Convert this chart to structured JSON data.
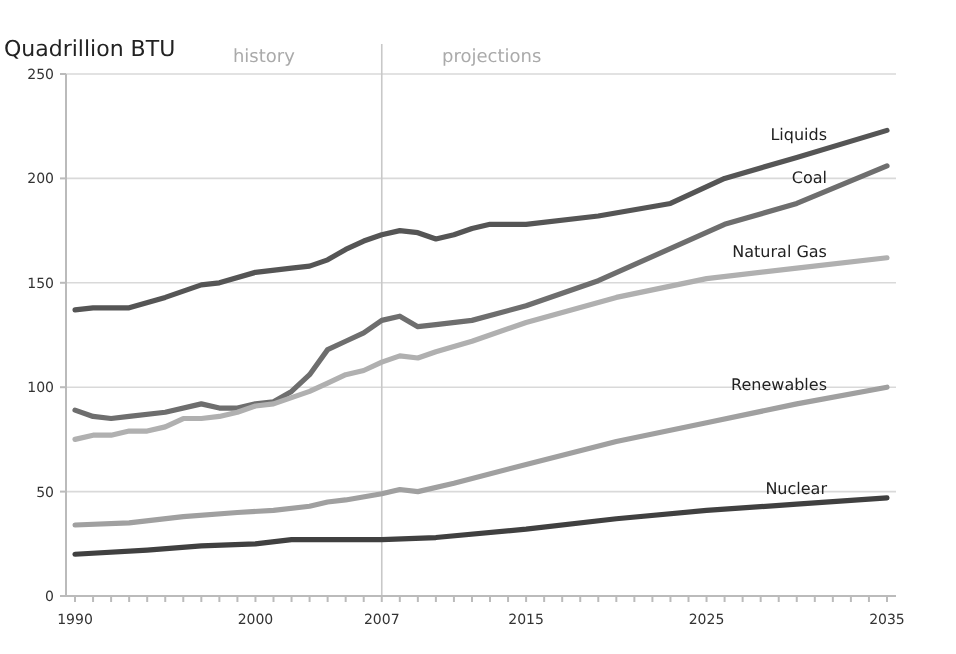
{
  "chart_data": {
    "type": "line",
    "ylabel": "Quadrillion BTU",
    "xlim": [
      1989.5,
      2035.5
    ],
    "ylim": [
      0,
      250
    ],
    "yticks": [
      0,
      50,
      100,
      150,
      200,
      250
    ],
    "xticks": [
      1990,
      {
        "value": 1991,
        "label": null
      },
      {
        "value": 1992,
        "label": null
      },
      {
        "value": 1993,
        "label": null
      },
      {
        "value": 1994,
        "label": null
      },
      {
        "value": 1995,
        "label": null
      },
      {
        "value": 1996,
        "label": null
      },
      {
        "value": 1997,
        "label": null
      },
      {
        "value": 1998,
        "label": null
      },
      {
        "value": 1999,
        "label": null
      },
      2000,
      {
        "value": 2001,
        "label": null
      },
      {
        "value": 2002,
        "label": null
      },
      {
        "value": 2003,
        "label": null
      },
      {
        "value": 2004,
        "label": null
      },
      {
        "value": 2005,
        "label": null
      },
      {
        "value": 2006,
        "label": null
      },
      2007,
      {
        "value": 2008,
        "label": null
      },
      {
        "value": 2009,
        "label": null
      },
      {
        "value": 2010,
        "label": null
      },
      {
        "value": 2011,
        "label": null
      },
      {
        "value": 2012,
        "label": null
      },
      {
        "value": 2013,
        "label": null
      },
      {
        "value": 2014,
        "label": null
      },
      2015,
      {
        "value": 2016,
        "label": null
      },
      {
        "value": 2017,
        "label": null
      },
      {
        "value": 2018,
        "label": null
      },
      {
        "value": 2019,
        "label": null
      },
      {
        "value": 2020,
        "label": null
      },
      {
        "value": 2021,
        "label": null
      },
      {
        "value": 2022,
        "label": null
      },
      {
        "value": 2023,
        "label": null
      },
      {
        "value": 2024,
        "label": null
      },
      2025,
      {
        "value": 2026,
        "label": null
      },
      {
        "value": 2027,
        "label": null
      },
      {
        "value": 2028,
        "label": null
      },
      {
        "value": 2029,
        "label": null
      },
      {
        "value": 2030,
        "label": null
      },
      {
        "value": 2031,
        "label": null
      },
      {
        "value": 2032,
        "label": null
      },
      {
        "value": 2033,
        "label": null
      },
      {
        "value": 2034,
        "label": null
      },
      2035
    ],
    "grid": "y",
    "legend": false,
    "marker": "none",
    "line_style": "solid",
    "ref_lines": [
      {
        "axis": "x",
        "value": 2007,
        "color": "#c8c8c8"
      }
    ],
    "annotations": [
      "history",
      "projections"
    ],
    "series": [
      {
        "name": "Liquids",
        "color": "#555555",
        "x": [
          1990,
          1991,
          1993,
          1995,
          1997,
          1998,
          2000,
          2002,
          2003,
          2004,
          2005,
          2006,
          2007,
          2008,
          2009,
          2010,
          2011,
          2012,
          2013,
          2015,
          2019,
          2023,
          2026,
          2030,
          2035
        ],
        "values": [
          137,
          138,
          138,
          143,
          149,
          150,
          155,
          157,
          158,
          161,
          166,
          170,
          173,
          175,
          174,
          171,
          173,
          176,
          178,
          178,
          182,
          188,
          200,
          210,
          223
        ]
      },
      {
        "name": "Coal",
        "color": "#6e6e6e",
        "x": [
          1990,
          1991,
          1992,
          1993,
          1995,
          1997,
          1998,
          1999,
          2000,
          2001,
          2002,
          2003,
          2004,
          2005,
          2006,
          2007,
          2008,
          2009,
          2010,
          2012,
          2015,
          2019,
          2026,
          2030,
          2035
        ],
        "values": [
          89,
          86,
          85,
          86,
          88,
          92,
          90,
          90,
          92,
          93,
          98,
          106,
          118,
          122,
          126,
          132,
          134,
          129,
          130,
          132,
          139,
          151,
          178,
          188,
          206
        ]
      },
      {
        "name": "Natural Gas",
        "color": "#b0b0b0",
        "x": [
          1990,
          1991,
          1992,
          1993,
          1994,
          1995,
          1996,
          1997,
          1998,
          1999,
          2000,
          2001,
          2002,
          2003,
          2004,
          2005,
          2006,
          2007,
          2008,
          2009,
          2010,
          2012,
          2015,
          2020,
          2025,
          2030,
          2035
        ],
        "values": [
          75,
          77,
          77,
          79,
          79,
          81,
          85,
          85,
          86,
          88,
          91,
          92,
          95,
          98,
          102,
          106,
          108,
          112,
          115,
          114,
          117,
          122,
          131,
          143,
          152,
          157,
          162
        ]
      },
      {
        "name": "Renewables",
        "color": "#a0a0a0",
        "x": [
          1990,
          1993,
          1996,
          1999,
          2001,
          2003,
          2004,
          2005,
          2007,
          2008,
          2009,
          2011,
          2015,
          2020,
          2025,
          2030,
          2035
        ],
        "values": [
          34,
          35,
          38,
          40,
          41,
          43,
          45,
          46,
          49,
          51,
          50,
          54,
          63,
          74,
          83,
          92,
          100
        ]
      },
      {
        "name": "Nuclear",
        "color": "#404040",
        "x": [
          1990,
          1994,
          1997,
          2000,
          2002,
          2005,
          2007,
          2010,
          2015,
          2020,
          2025,
          2030,
          2035
        ],
        "values": [
          20,
          22,
          24,
          25,
          27,
          27,
          27,
          28,
          32,
          37,
          41,
          44,
          47
        ]
      }
    ]
  }
}
